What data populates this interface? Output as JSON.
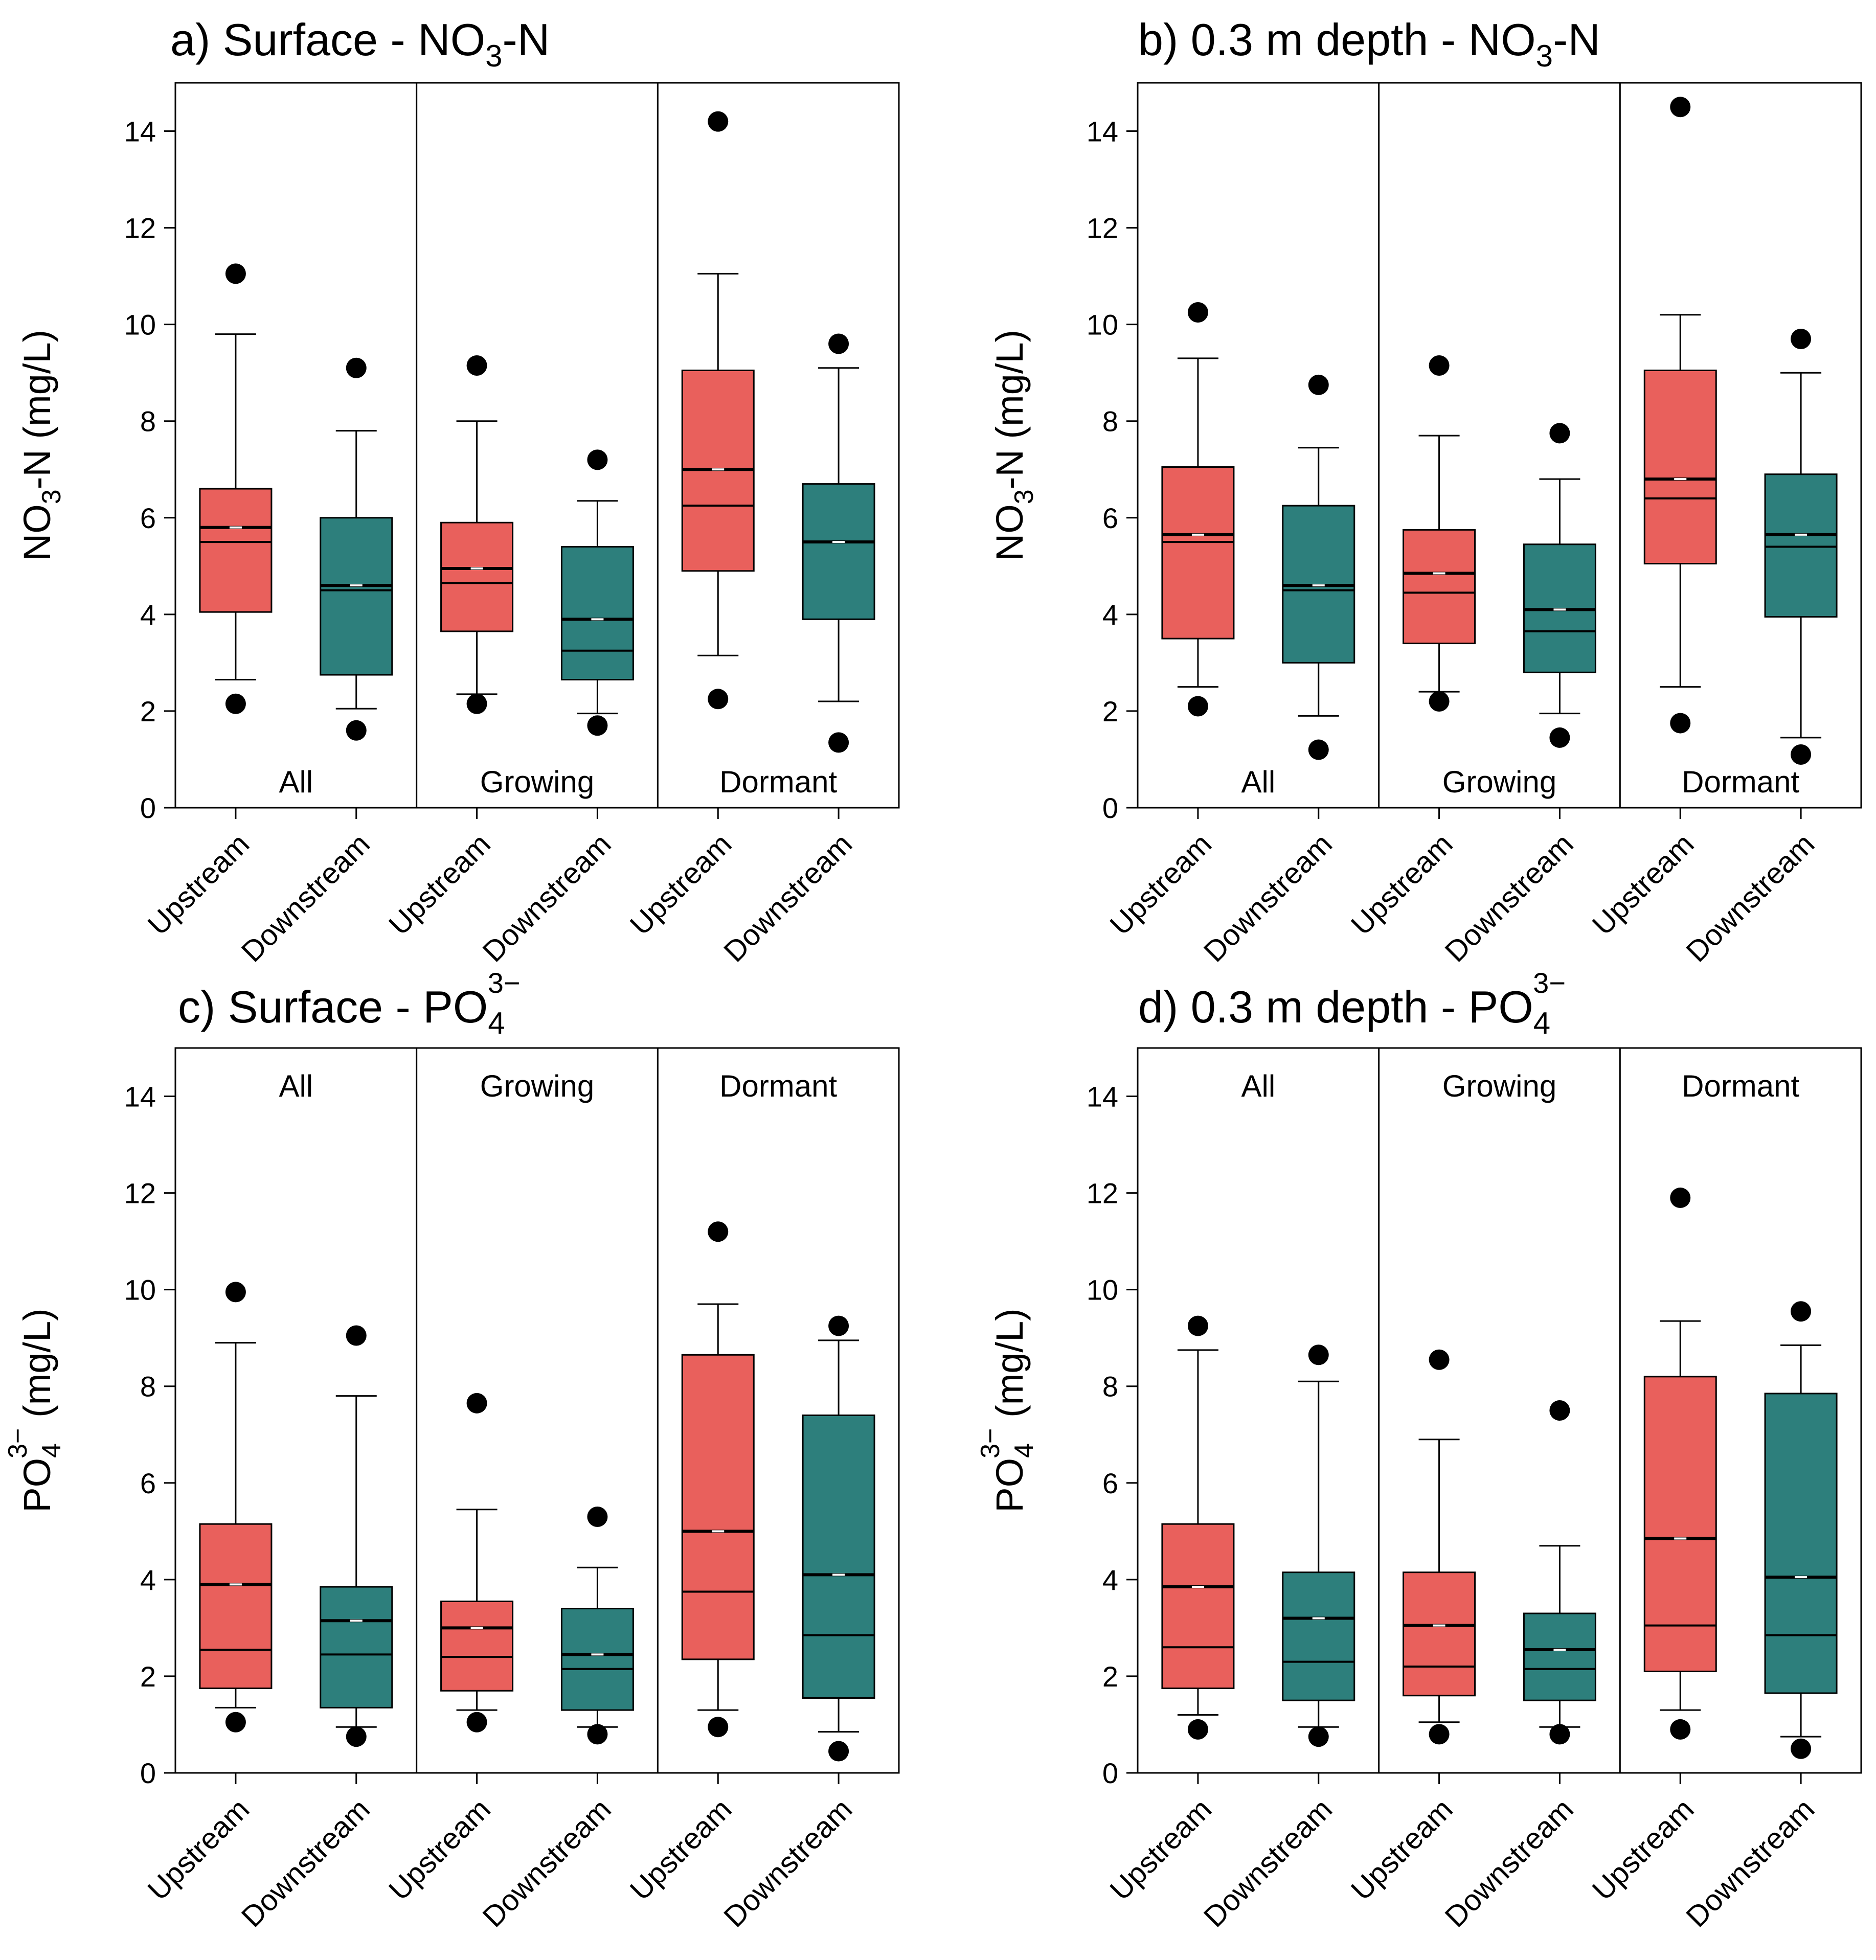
{
  "colors": {
    "upstream": "#e9605c",
    "downstream": "#2d7f7c",
    "mean_line": "#ffffff",
    "median_line": "#000000"
  },
  "chart_data": [
    {
      "type": "box",
      "panel": "a",
      "title": {
        "prefix": "a) Surface - NO",
        "sub": "3",
        "suffix": "-N",
        "sup": ""
      },
      "ylabel": {
        "main": "NO",
        "sub": "3",
        "suffix": "-N (mg/L)",
        "sup": ""
      },
      "ylim": [
        0,
        15
      ],
      "yticks": [
        "0",
        "2",
        "4",
        "6",
        "8",
        "10",
        "12",
        "14"
      ],
      "period_label_position": "bottom",
      "groups": [
        "All",
        "Growing",
        "Dormant"
      ],
      "categories": [
        "Upstream",
        "Downstream",
        "Upstream",
        "Downstream",
        "Upstream",
        "Downstream"
      ],
      "series": [
        {
          "name": "All Upstream",
          "site": "upstream",
          "whisker_low": 2.65,
          "q1": 4.05,
          "median": 5.5,
          "mean": 5.8,
          "q3": 6.6,
          "whisker_high": 9.8,
          "outlier_low": 2.15,
          "outlier_high": 11.05
        },
        {
          "name": "All Downstream",
          "site": "downstream",
          "whisker_low": 2.05,
          "q1": 2.75,
          "median": 4.5,
          "mean": 4.6,
          "q3": 6.0,
          "whisker_high": 7.8,
          "outlier_low": 1.6,
          "outlier_high": 9.1
        },
        {
          "name": "Growing Upstream",
          "site": "upstream",
          "whisker_low": 2.35,
          "q1": 3.65,
          "median": 4.65,
          "mean": 4.95,
          "q3": 5.9,
          "whisker_high": 8.0,
          "outlier_low": 2.15,
          "outlier_high": 9.15
        },
        {
          "name": "Growing Downstream",
          "site": "downstream",
          "whisker_low": 1.95,
          "q1": 2.65,
          "median": 3.25,
          "mean": 3.9,
          "q3": 5.4,
          "whisker_high": 6.35,
          "outlier_low": 1.7,
          "outlier_high": 7.2
        },
        {
          "name": "Dormant Upstream",
          "site": "upstream",
          "whisker_low": 3.15,
          "q1": 4.9,
          "median": 6.25,
          "mean": 7.0,
          "q3": 9.05,
          "whisker_high": 11.05,
          "outlier_low": 2.25,
          "outlier_high": 14.2
        },
        {
          "name": "Dormant Downstream",
          "site": "downstream",
          "whisker_low": 2.2,
          "q1": 3.9,
          "median": 5.5,
          "mean": 5.5,
          "q3": 6.7,
          "whisker_high": 9.1,
          "outlier_low": 1.35,
          "outlier_high": 9.6
        }
      ]
    },
    {
      "type": "box",
      "panel": "b",
      "title": {
        "prefix": "b) 0.3 m depth - NO",
        "sub": "3",
        "suffix": "-N",
        "sup": ""
      },
      "ylabel": {
        "main": "NO",
        "sub": "3",
        "suffix": "-N (mg/L)",
        "sup": ""
      },
      "ylim": [
        0,
        15
      ],
      "yticks": [
        "0",
        "2",
        "4",
        "6",
        "8",
        "10",
        "12",
        "14"
      ],
      "period_label_position": "bottom",
      "groups": [
        "All",
        "Growing",
        "Dormant"
      ],
      "categories": [
        "Upstream",
        "Downstream",
        "Upstream",
        "Downstream",
        "Upstream",
        "Downstream"
      ],
      "series": [
        {
          "name": "All Upstream",
          "site": "upstream",
          "whisker_low": 2.5,
          "q1": 3.5,
          "median": 5.5,
          "mean": 5.65,
          "q3": 7.05,
          "whisker_high": 9.3,
          "outlier_low": 2.1,
          "outlier_high": 10.25
        },
        {
          "name": "All Downstream",
          "site": "downstream",
          "whisker_low": 1.9,
          "q1": 3.0,
          "median": 4.5,
          "mean": 4.6,
          "q3": 6.25,
          "whisker_high": 7.45,
          "outlier_low": 1.2,
          "outlier_high": 8.75
        },
        {
          "name": "Growing Upstream",
          "site": "upstream",
          "whisker_low": 2.4,
          "q1": 3.4,
          "median": 4.45,
          "mean": 4.85,
          "q3": 5.75,
          "whisker_high": 7.7,
          "outlier_low": 2.2,
          "outlier_high": 9.15
        },
        {
          "name": "Growing Downstream",
          "site": "downstream",
          "whisker_low": 1.95,
          "q1": 2.8,
          "median": 3.65,
          "mean": 4.1,
          "q3": 5.45,
          "whisker_high": 6.8,
          "outlier_low": 1.45,
          "outlier_high": 7.75
        },
        {
          "name": "Dormant Upstream",
          "site": "upstream",
          "whisker_low": 2.5,
          "q1": 5.05,
          "median": 6.4,
          "mean": 6.8,
          "q3": 9.05,
          "whisker_high": 10.2,
          "outlier_low": 1.75,
          "outlier_high": 14.5
        },
        {
          "name": "Dormant Downstream",
          "site": "downstream",
          "whisker_low": 1.45,
          "q1": 3.95,
          "median": 5.4,
          "mean": 5.65,
          "q3": 6.9,
          "whisker_high": 9.0,
          "outlier_low": 1.1,
          "outlier_high": 9.7
        }
      ]
    },
    {
      "type": "box",
      "panel": "c",
      "title": {
        "prefix": "c) Surface - PO",
        "sub": "4",
        "suffix": "",
        "sup": "3−"
      },
      "ylabel": {
        "main": "PO",
        "sub": "4",
        "suffix": " (mg/L)",
        "sup": "3−"
      },
      "ylim": [
        0,
        15
      ],
      "yticks": [
        "0",
        "2",
        "4",
        "6",
        "8",
        "10",
        "12",
        "14"
      ],
      "period_label_position": "top",
      "groups": [
        "All",
        "Growing",
        "Dormant"
      ],
      "categories": [
        "Upstream",
        "Downstream",
        "Upstream",
        "Downstream",
        "Upstream",
        "Downstream"
      ],
      "series": [
        {
          "name": "All Upstream",
          "site": "upstream",
          "whisker_low": 1.35,
          "q1": 1.75,
          "median": 2.55,
          "mean": 3.9,
          "q3": 5.15,
          "whisker_high": 8.9,
          "outlier_low": 1.05,
          "outlier_high": 9.95
        },
        {
          "name": "All Downstream",
          "site": "downstream",
          "whisker_low": 0.95,
          "q1": 1.35,
          "median": 2.45,
          "mean": 3.15,
          "q3": 3.85,
          "whisker_high": 7.8,
          "outlier_low": 0.75,
          "outlier_high": 9.05
        },
        {
          "name": "Growing Upstream",
          "site": "upstream",
          "whisker_low": 1.3,
          "q1": 1.7,
          "median": 2.4,
          "mean": 3.0,
          "q3": 3.55,
          "whisker_high": 5.45,
          "outlier_low": 1.05,
          "outlier_high": 7.65
        },
        {
          "name": "Growing Downstream",
          "site": "downstream",
          "whisker_low": 0.95,
          "q1": 1.3,
          "median": 2.15,
          "mean": 2.45,
          "q3": 3.4,
          "whisker_high": 4.25,
          "outlier_low": 0.8,
          "outlier_high": 5.3
        },
        {
          "name": "Dormant Upstream",
          "site": "upstream",
          "whisker_low": 1.3,
          "q1": 2.35,
          "median": 3.75,
          "mean": 5.0,
          "q3": 8.65,
          "whisker_high": 9.7,
          "outlier_low": 0.95,
          "outlier_high": 11.2
        },
        {
          "name": "Dormant Downstream",
          "site": "downstream",
          "whisker_low": 0.85,
          "q1": 1.55,
          "median": 2.85,
          "mean": 4.1,
          "q3": 7.4,
          "whisker_high": 8.95,
          "outlier_low": 0.45,
          "outlier_high": 9.25
        }
      ]
    },
    {
      "type": "box",
      "panel": "d",
      "title": {
        "prefix": "d) 0.3 m depth - PO",
        "sub": "4",
        "suffix": "",
        "sup": "3−"
      },
      "ylabel": {
        "main": "PO",
        "sub": "4",
        "suffix": " (mg/L)",
        "sup": "3−"
      },
      "ylim": [
        0,
        15
      ],
      "yticks": [
        "0",
        "2",
        "4",
        "6",
        "8",
        "10",
        "12",
        "14"
      ],
      "period_label_position": "top",
      "groups": [
        "All",
        "Growing",
        "Dormant"
      ],
      "categories": [
        "Upstream",
        "Downstream",
        "Upstream",
        "Downstream",
        "Upstream",
        "Downstream"
      ],
      "series": [
        {
          "name": "All Upstream",
          "site": "upstream",
          "whisker_low": 1.2,
          "q1": 1.75,
          "median": 2.6,
          "mean": 3.85,
          "q3": 5.15,
          "whisker_high": 8.75,
          "outlier_low": 0.9,
          "outlier_high": 9.25
        },
        {
          "name": "All Downstream",
          "site": "downstream",
          "whisker_low": 0.95,
          "q1": 1.5,
          "median": 2.3,
          "mean": 3.2,
          "q3": 4.15,
          "whisker_high": 8.1,
          "outlier_low": 0.75,
          "outlier_high": 8.65
        },
        {
          "name": "Growing Upstream",
          "site": "upstream",
          "whisker_low": 1.05,
          "q1": 1.6,
          "median": 2.2,
          "mean": 3.05,
          "q3": 4.15,
          "whisker_high": 6.9,
          "outlier_low": 0.8,
          "outlier_high": 8.55
        },
        {
          "name": "Growing Downstream",
          "site": "downstream",
          "whisker_low": 0.95,
          "q1": 1.5,
          "median": 2.15,
          "mean": 2.55,
          "q3": 3.3,
          "whisker_high": 4.7,
          "outlier_low": 0.8,
          "outlier_high": 7.5
        },
        {
          "name": "Dormant Upstream",
          "site": "upstream",
          "whisker_low": 1.3,
          "q1": 2.1,
          "median": 3.05,
          "mean": 4.85,
          "q3": 8.2,
          "whisker_high": 9.35,
          "outlier_low": 0.9,
          "outlier_high": 11.9
        },
        {
          "name": "Dormant Downstream",
          "site": "downstream",
          "whisker_low": 0.75,
          "q1": 1.65,
          "median": 2.85,
          "mean": 4.05,
          "q3": 7.85,
          "whisker_high": 8.85,
          "outlier_low": 0.5,
          "outlier_high": 9.55
        }
      ]
    }
  ]
}
